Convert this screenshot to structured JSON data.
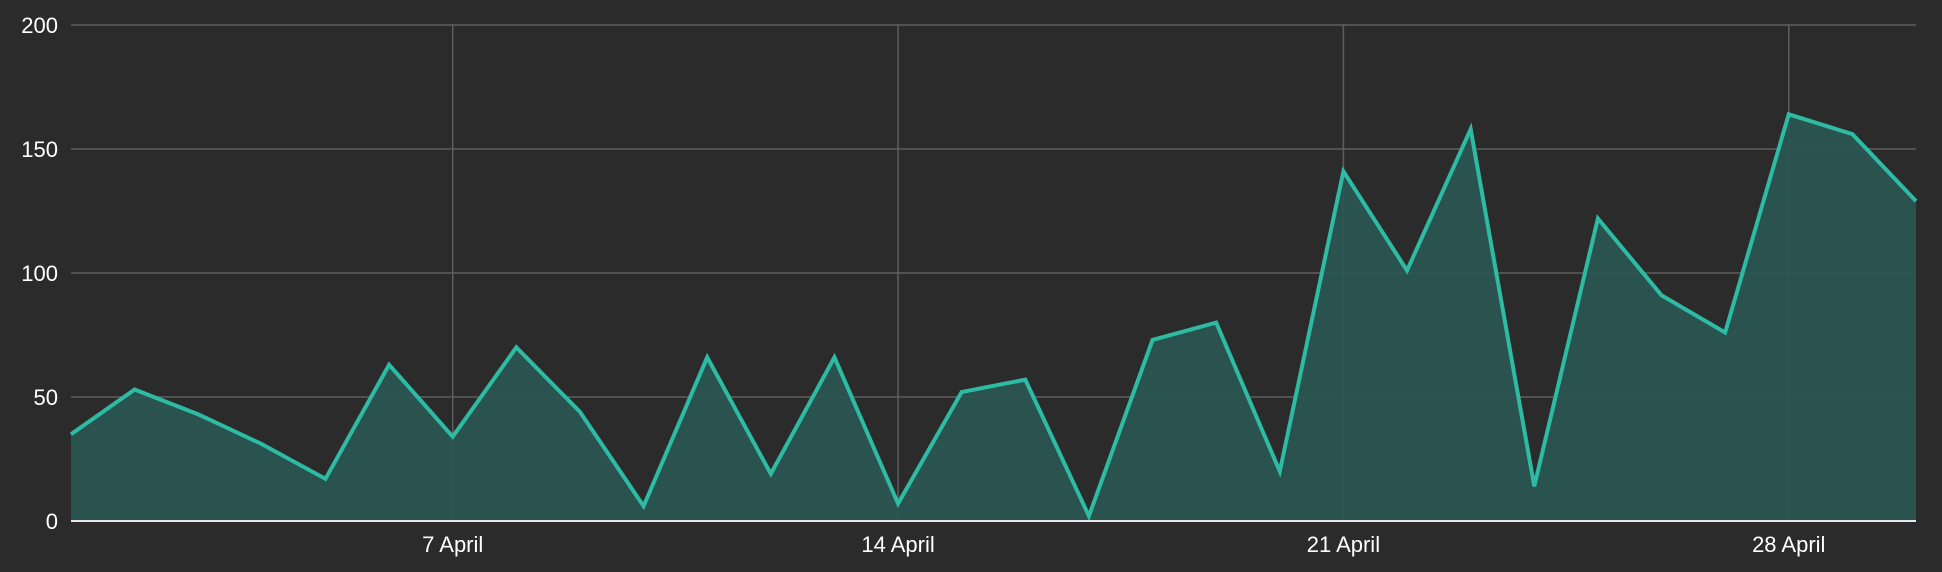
{
  "chart_data": {
    "type": "area",
    "title": "",
    "xlabel": "",
    "ylabel": "",
    "x_start": "2024-04-01",
    "x_end": "2024-04-30",
    "xlim": [
      "2024-04-01",
      "2024-04-30"
    ],
    "ylim": [
      0,
      200
    ],
    "y_ticks": [
      0,
      50,
      100,
      150,
      200
    ],
    "x_ticks": [
      {
        "date": "2024-04-07",
        "label": "7 April"
      },
      {
        "date": "2024-04-14",
        "label": "14 April"
      },
      {
        "date": "2024-04-21",
        "label": "21 April"
      },
      {
        "date": "2024-04-28",
        "label": "28 April"
      }
    ],
    "grid": true,
    "legend": "none",
    "colors": {
      "background": "#2b2b2b",
      "line": "#2dbba3",
      "fill": "#2a5753",
      "grid": "#5e5e5e",
      "axis": "#e8e8e8",
      "text": "#ffffff"
    },
    "series": [
      {
        "x": [
          "2024-04-01",
          "2024-04-02",
          "2024-04-03",
          "2024-04-04",
          "2024-04-05",
          "2024-04-06",
          "2024-04-07",
          "2024-04-08",
          "2024-04-09",
          "2024-04-10",
          "2024-04-11",
          "2024-04-12",
          "2024-04-13",
          "2024-04-14",
          "2024-04-15",
          "2024-04-16",
          "2024-04-17",
          "2024-04-18",
          "2024-04-19",
          "2024-04-20",
          "2024-04-21",
          "2024-04-22",
          "2024-04-23",
          "2024-04-24",
          "2024-04-25",
          "2024-04-26",
          "2024-04-27",
          "2024-04-28",
          "2024-04-29",
          "2024-04-30"
        ],
        "values": [
          35,
          53,
          43,
          31,
          17,
          63,
          34,
          70,
          44,
          6,
          66,
          19,
          66,
          7,
          52,
          57,
          2,
          73,
          80,
          20,
          141,
          101,
          158,
          14,
          122,
          91,
          76,
          164,
          156,
          129
        ]
      }
    ]
  }
}
